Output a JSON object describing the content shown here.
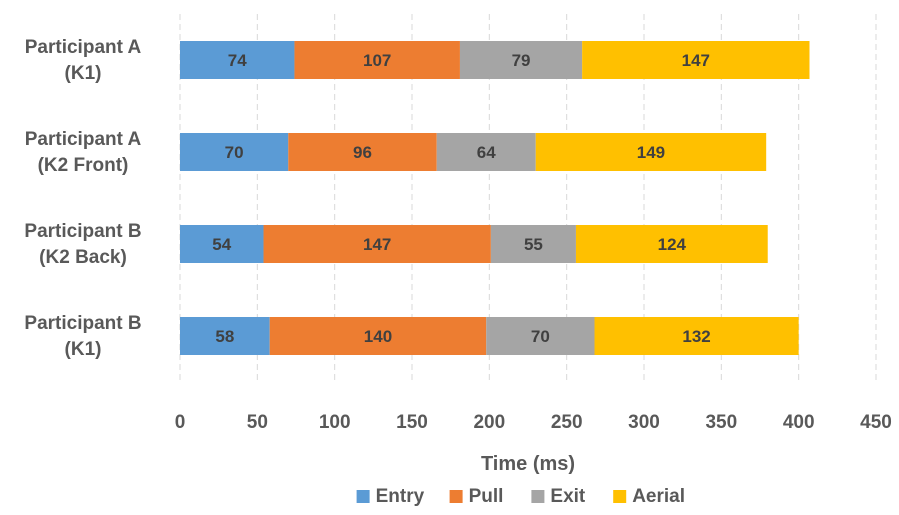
{
  "chart_data": {
    "type": "bar",
    "orientation": "horizontal",
    "stacked": true,
    "categories": [
      [
        "Participant A",
        "(K1)"
      ],
      [
        "Participant A",
        "(K2 Front)"
      ],
      [
        "Participant B",
        "(K2 Back)"
      ],
      [
        "Participant B",
        "(K1)"
      ]
    ],
    "series": [
      {
        "name": "Entry",
        "color": "#5b9bd5",
        "values": [
          74,
          70,
          54,
          58
        ]
      },
      {
        "name": "Pull",
        "color": "#ed7d31",
        "values": [
          107,
          96,
          147,
          140
        ]
      },
      {
        "name": "Exit",
        "color": "#a5a5a5",
        "values": [
          79,
          64,
          55,
          70
        ]
      },
      {
        "name": "Aerial",
        "color": "#ffc000",
        "values": [
          147,
          149,
          124,
          132
        ]
      }
    ],
    "xlabel": "Time (ms)",
    "ylabel": "",
    "title": "",
    "xlim": [
      0,
      450
    ],
    "xticks": [
      0,
      50,
      100,
      150,
      200,
      250,
      300,
      350,
      400,
      450
    ],
    "grid": true,
    "legend_position": "bottom"
  }
}
